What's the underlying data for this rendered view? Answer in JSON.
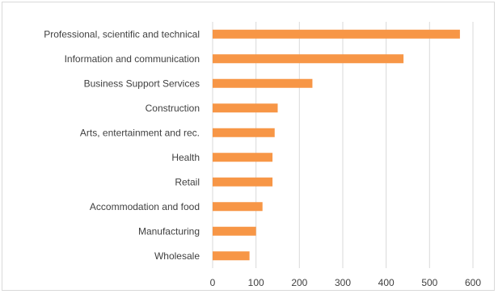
{
  "chart_data": {
    "type": "bar",
    "orientation": "horizontal",
    "title": "",
    "xlabel": "",
    "ylabel": "",
    "categories": [
      "Professional, scientific and technical",
      "Information and communication",
      "Business Support Services",
      "Construction",
      "Arts, entertainment and rec.",
      "Health",
      "Retail",
      "Accommodation and food",
      "Manufacturing",
      "Wholesale"
    ],
    "values": [
      570,
      440,
      230,
      150,
      143,
      138,
      138,
      115,
      100,
      85
    ],
    "xlim": [
      0,
      600
    ],
    "xticks": [
      "0",
      "100",
      "200",
      "300",
      "400",
      "500",
      "600"
    ],
    "grid": "vertical",
    "legend": "none",
    "bar_color": "#F79646",
    "grid_color": "#d9d9d9"
  }
}
